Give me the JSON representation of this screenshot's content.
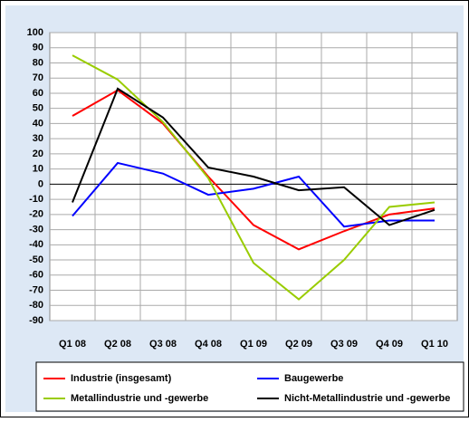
{
  "chart_data": {
    "type": "line",
    "categories": [
      "Q1 08",
      "Q2 08",
      "Q3 08",
      "Q4 08",
      "Q1 09",
      "Q2 09",
      "Q3 09",
      "Q4 09",
      "Q1 10"
    ],
    "series": [
      {
        "name": "Industrie (insgesamt)",
        "color": "#ff0000",
        "values": [
          45,
          62,
          40,
          5,
          -27,
          -43,
          -31,
          -20,
          -16
        ]
      },
      {
        "name": "Baugewerbe",
        "color": "#0000ff",
        "values": [
          -21,
          14,
          7,
          -7,
          -3,
          5,
          -28,
          -24,
          -24
        ]
      },
      {
        "name": "Metallindustrie und -gewerbe",
        "color": "#99cc00",
        "values": [
          85,
          69,
          41,
          4,
          -52,
          -76,
          -50,
          -15,
          -12
        ]
      },
      {
        "name": "Nicht-Metallindustrie und -gewerbe",
        "color": "#000000",
        "values": [
          -12,
          63,
          44,
          11,
          5,
          -4,
          -2,
          -27,
          -17
        ]
      }
    ],
    "ylim": [
      -90,
      100
    ],
    "yticks": [
      -90,
      -80,
      -70,
      -60,
      -50,
      -40,
      -30,
      -20,
      -10,
      0,
      10,
      20,
      30,
      40,
      50,
      60,
      70,
      80,
      90,
      100
    ],
    "grid": true
  }
}
